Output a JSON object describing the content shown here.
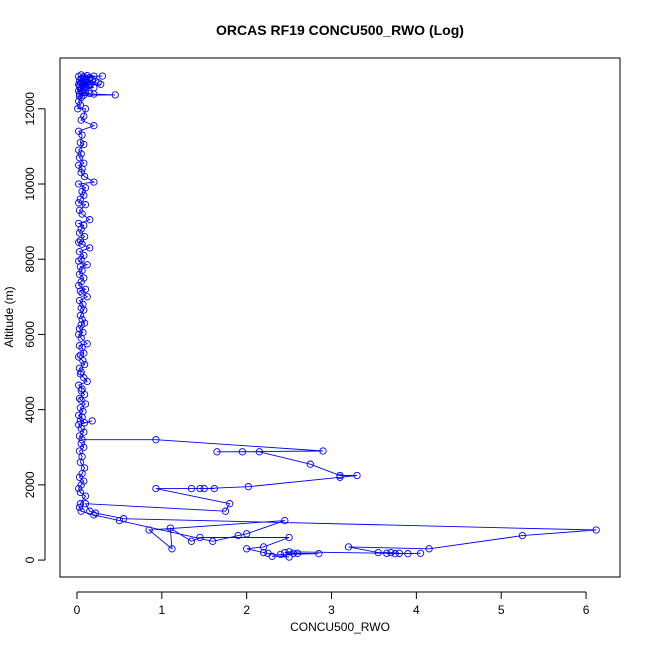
{
  "chart_data": {
    "type": "line",
    "title": "ORCAS RF19 CONCU500_RWO (Log)",
    "xlabel": "CONCU500_RWO",
    "ylabel": "Altitude (m)",
    "xlim": [
      -0.2,
      6.4
    ],
    "ylim": [
      -450,
      13350
    ],
    "xticks": [
      0,
      1,
      2,
      3,
      4,
      5,
      6
    ],
    "yticks": [
      0,
      2000,
      4000,
      6000,
      8000,
      10000,
      12000
    ],
    "grid": false,
    "legend": "none",
    "series": [
      {
        "color": "#0000ff",
        "marker": "open-circle",
        "line": true,
        "points": [
          [
            0.05,
            12900
          ],
          [
            0.12,
            12880
          ],
          [
            0.2,
            12870
          ],
          [
            0.02,
            12860
          ],
          [
            0.3,
            12870
          ],
          [
            0.08,
            12850
          ],
          [
            0.15,
            12830
          ],
          [
            0.05,
            12800
          ],
          [
            0.1,
            12780
          ],
          [
            0.18,
            12760
          ],
          [
            0.03,
            12740
          ],
          [
            0.22,
            12730
          ],
          [
            0.06,
            12720
          ],
          [
            0.12,
            12700
          ],
          [
            0.25,
            12690
          ],
          [
            0.04,
            12680
          ],
          [
            0.09,
            12660
          ],
          [
            0.16,
            12650
          ],
          [
            0.02,
            12640
          ],
          [
            0.28,
            12650
          ],
          [
            0.07,
            12630
          ],
          [
            0.14,
            12620
          ],
          [
            0.03,
            12600
          ],
          [
            0.11,
            12580
          ],
          [
            0.2,
            12560
          ],
          [
            0.04,
            12540
          ],
          [
            0.08,
            12520
          ],
          [
            0.05,
            12500
          ],
          [
            0.02,
            12480
          ],
          [
            0.06,
            12450
          ],
          [
            0.1,
            12430
          ],
          [
            0.15,
            12410
          ],
          [
            0.03,
            12400
          ],
          [
            0.2,
            12390
          ],
          [
            0.45,
            12370
          ],
          [
            0.08,
            12360
          ],
          [
            0.03,
            12340
          ],
          [
            0.05,
            12300
          ],
          [
            0.02,
            12200
          ],
          [
            0.04,
            12100
          ],
          [
            0.01,
            12000
          ],
          [
            0.1,
            12000
          ],
          [
            0.08,
            11800
          ],
          [
            0.05,
            11700
          ],
          [
            0.2,
            11550
          ],
          [
            0.02,
            11400
          ],
          [
            0.06,
            11300
          ],
          [
            0.04,
            11100
          ],
          [
            0.08,
            11050
          ],
          [
            0.02,
            10900
          ],
          [
            0.05,
            10800
          ],
          [
            0.03,
            10700
          ],
          [
            0.08,
            10550
          ],
          [
            0.02,
            10500
          ],
          [
            0.06,
            10400
          ],
          [
            0.05,
            10300
          ],
          [
            0.09,
            10200
          ],
          [
            0.2,
            10050
          ],
          [
            0.02,
            10000
          ],
          [
            0.1,
            9900
          ],
          [
            0.06,
            9800
          ],
          [
            0.08,
            9700
          ],
          [
            0.04,
            9600
          ],
          [
            0.02,
            9500
          ],
          [
            0.1,
            9450
          ],
          [
            0.03,
            9300
          ],
          [
            0.06,
            9200
          ],
          [
            0.15,
            9050
          ],
          [
            0.02,
            8950
          ],
          [
            0.08,
            8900
          ],
          [
            0.05,
            8800
          ],
          [
            0.03,
            8700
          ],
          [
            0.09,
            8600
          ],
          [
            0.04,
            8500
          ],
          [
            0.02,
            8450
          ],
          [
            0.06,
            8400
          ],
          [
            0.15,
            8300
          ],
          [
            0.03,
            8200
          ],
          [
            0.08,
            8100
          ],
          [
            0.05,
            8000
          ],
          [
            0.02,
            7950
          ],
          [
            0.12,
            7850
          ],
          [
            0.04,
            7800
          ],
          [
            0.06,
            7700
          ],
          [
            0.03,
            7600
          ],
          [
            0.08,
            7500
          ],
          [
            0.05,
            7400
          ],
          [
            0.02,
            7300
          ],
          [
            0.1,
            7200
          ],
          [
            0.04,
            7150
          ],
          [
            0.06,
            7100
          ],
          [
            0.12,
            7000
          ],
          [
            0.03,
            6900
          ],
          [
            0.07,
            6800
          ],
          [
            0.05,
            6700
          ],
          [
            0.08,
            6650
          ],
          [
            0.04,
            6500
          ],
          [
            0.06,
            6400
          ],
          [
            0.09,
            6300
          ],
          [
            0.05,
            6250
          ],
          [
            0.03,
            6150
          ],
          [
            0.07,
            6050
          ],
          [
            0.02,
            6000
          ],
          [
            0.05,
            5900
          ],
          [
            0.12,
            5750
          ],
          [
            0.03,
            5700
          ],
          [
            0.06,
            5650
          ],
          [
            0.08,
            5500
          ],
          [
            0.04,
            5450
          ],
          [
            0.02,
            5400
          ],
          [
            0.07,
            5300
          ],
          [
            0.09,
            5200
          ],
          [
            0.03,
            5100
          ],
          [
            0.05,
            5000
          ],
          [
            0.04,
            4950
          ],
          [
            0.08,
            4850
          ],
          [
            0.12,
            4750
          ],
          [
            0.02,
            4650
          ],
          [
            0.06,
            4550
          ],
          [
            0.05,
            4500
          ],
          [
            0.09,
            4400
          ],
          [
            0.03,
            4300
          ],
          [
            0.05,
            4250
          ],
          [
            0.1,
            4150
          ],
          [
            0.04,
            4050
          ],
          [
            0.07,
            3950
          ],
          [
            0.02,
            3850
          ],
          [
            0.06,
            3800
          ],
          [
            0.04,
            3700
          ],
          [
            0.09,
            3650
          ],
          [
            0.18,
            3700
          ],
          [
            0.02,
            3600
          ],
          [
            0.05,
            3500
          ],
          [
            0.08,
            3400
          ],
          [
            0.03,
            3300
          ],
          [
            0.06,
            3200
          ],
          [
            0.93,
            3200
          ],
          [
            2.9,
            2900
          ],
          [
            1.65,
            2880
          ],
          [
            1.95,
            2880
          ],
          [
            2.15,
            2880
          ],
          [
            2.75,
            2550
          ],
          [
            3.1,
            2250
          ],
          [
            3.3,
            2250
          ],
          [
            3.1,
            2200
          ],
          [
            2.02,
            1950
          ],
          [
            1.5,
            1900
          ],
          [
            1.62,
            1900
          ],
          [
            1.45,
            1900
          ],
          [
            1.35,
            1900
          ],
          [
            0.93,
            1900
          ],
          [
            1.8,
            1500
          ],
          [
            1.75,
            1300
          ],
          [
            0.1,
            1500
          ],
          [
            0.15,
            1300
          ],
          [
            0.22,
            1250
          ],
          [
            0.55,
            1100
          ],
          [
            6.12,
            800
          ],
          [
            5.25,
            650
          ],
          [
            4.15,
            300
          ],
          [
            3.2,
            350
          ],
          [
            3.55,
            200
          ],
          [
            3.7,
            200
          ],
          [
            3.8,
            180
          ],
          [
            3.9,
            170
          ],
          [
            4.05,
            180
          ],
          [
            3.75,
            170
          ],
          [
            3.65,
            180
          ],
          [
            2.5,
            220
          ],
          [
            2.45,
            200
          ],
          [
            2.55,
            180
          ],
          [
            2.6,
            180
          ],
          [
            2.85,
            170
          ],
          [
            2.4,
            150
          ],
          [
            2.3,
            100
          ],
          [
            2.5,
            80
          ],
          [
            2.25,
            180
          ],
          [
            2.2,
            200
          ],
          [
            2.0,
            300
          ],
          [
            2.2,
            350
          ],
          [
            2.5,
            600
          ],
          [
            1.45,
            600
          ],
          [
            1.35,
            500
          ],
          [
            1.1,
            850
          ],
          [
            1.12,
            300
          ],
          [
            0.85,
            800
          ],
          [
            2.45,
            1050
          ],
          [
            2.0,
            700
          ],
          [
            1.9,
            650
          ],
          [
            1.6,
            500
          ],
          [
            0.5,
            1050
          ],
          [
            0.2,
            1200
          ],
          [
            0.05,
            1300
          ],
          [
            0.03,
            1400
          ],
          [
            0.04,
            1500
          ],
          [
            0.1,
            1700
          ],
          [
            0.04,
            1800
          ],
          [
            0.02,
            1900
          ],
          [
            0.05,
            2000
          ],
          [
            0.08,
            2100
          ],
          [
            0.03,
            2200
          ],
          [
            0.06,
            2300
          ],
          [
            0.09,
            2450
          ],
          [
            0.04,
            2600
          ],
          [
            0.06,
            2750
          ],
          [
            0.03,
            2900
          ],
          [
            0.08,
            3000
          ],
          [
            0.05,
            3100
          ]
        ]
      }
    ]
  }
}
